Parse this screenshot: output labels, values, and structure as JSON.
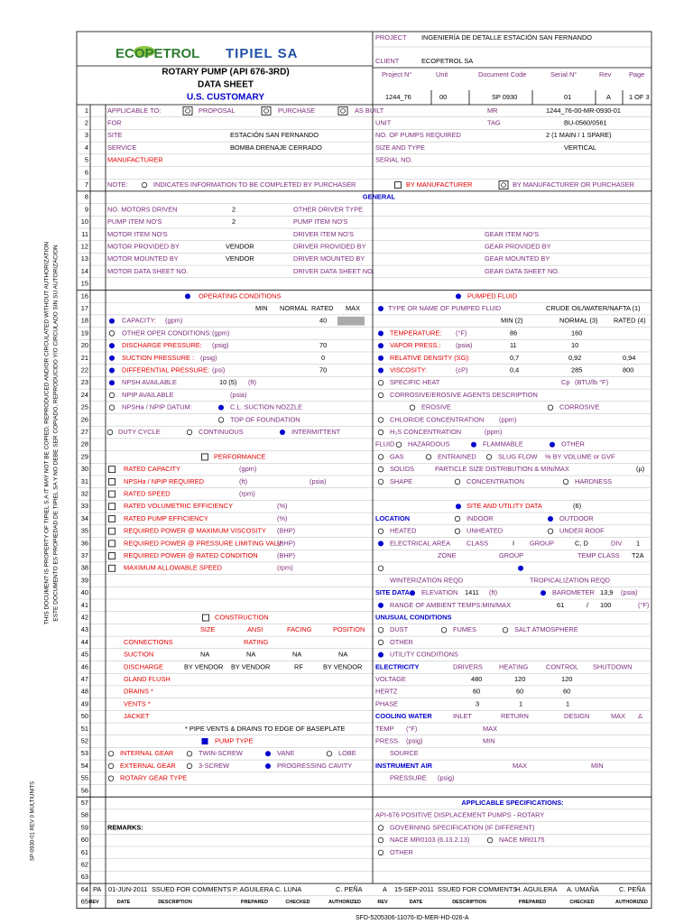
{
  "header": {
    "logo": "ECOPETROL",
    "company": "TIPIEL SA",
    "title": "ROTARY PUMP (API 676-3RD)",
    "subtitle": "DATA SHEET",
    "units": "U.S. CUSTOMARY",
    "project_label": "PROJECT",
    "project": "INGENIERÍA DE DETALLE ESTACIÓN SAN FERNANDO",
    "client_label": "CLIENT",
    "client": "ECOPETROL SA",
    "doc_headers": [
      "Project N°",
      "Unit",
      "Document Code",
      "Serial N°",
      "Rev",
      "Page"
    ],
    "doc_values": [
      "1244_76",
      "00",
      "SP 0930",
      "01",
      "A",
      "1 OF 3"
    ]
  },
  "row_numbers": [
    1,
    2,
    3,
    4,
    5,
    6,
    7,
    8,
    9,
    10,
    11,
    12,
    13,
    14,
    15,
    16,
    17,
    18,
    19,
    20,
    21,
    22,
    23,
    24,
    25,
    26,
    27,
    28,
    29,
    30,
    31,
    32,
    33,
    34,
    35,
    36,
    37,
    38,
    39,
    40,
    41,
    42,
    43,
    44,
    45,
    46,
    47,
    48,
    49,
    50,
    51,
    52,
    53,
    54,
    55,
    56,
    57,
    58,
    59,
    60,
    61,
    62,
    63,
    64,
    65
  ],
  "rows": [
    [
      "APPLICABLE TO:",
      "PROPOSAL",
      "PURCHASE",
      "AS BUILT",
      "MR",
      "1244_76-00-MR-0930-01"
    ],
    [
      "FOR",
      "UNIT",
      "TAG",
      "BU-0560/0561"
    ],
    [
      "SITE",
      "ESTACIÓN SAN FERNANDO",
      "NO. OF PUMPS REQUIRED",
      "2 (1 MAIN / 1 SPARE)"
    ],
    [
      "SERVICE",
      "BOMBA DRENAJE CERRADO",
      "SIZE AND TYPE",
      "VERTICAL"
    ],
    [
      "MANUFACTURER",
      "SERIAL NO."
    ],
    [],
    [
      "NOTE:",
      "INDICATES INFORMATION TO BE COMPLETED BY PURCHASER",
      "BY MANUFACTURER",
      "BY MANUFACTURER OR PURCHASER"
    ],
    [
      "GENERAL"
    ],
    [
      "NO. MOTORS DRIVEN",
      "2",
      "OTHER DRIVER TYPE"
    ],
    [
      "PUMP ITEM NO'S",
      "2",
      "PUMP ITEM NO'S"
    ],
    [
      "MOTOR ITEM NO'S",
      "DRIVER ITEM NO'S",
      "GEAR ITEM NO'S"
    ],
    [
      "MOTOR PROVIDED BY",
      "VENDOR",
      "DRIVER PROVIDED BY",
      "GEAR PROVIDED BY"
    ],
    [
      "MOTOR MOUNTED BY",
      "VENDOR",
      "DRIVER MOUNTED BY",
      "GEAR MOUNTED BY"
    ],
    [
      "MOTOR DATA SHEET NO.",
      "DRIVER DATA SHEET NO.",
      "GEAR DATA SHEET NO."
    ],
    [],
    [
      "OPERATING CONDITIONS",
      "PUMPED FLUID"
    ],
    [
      "MIN",
      "NORMAL",
      "RATED",
      "MAX",
      "TYPE OR NAME OF PUMPED FLUID",
      "CRUDE OIL/WATER/NAFTA (1)"
    ],
    [
      "CAPACITY:",
      "(gpm)",
      "40",
      "MIN (2)",
      "NORMAL (3)",
      "RATED (4)"
    ],
    [
      "OTHER OPER CONDITIONS:",
      "(gpm)",
      "TEMPERATURE:",
      "(°F)",
      "86",
      "160"
    ],
    [
      "DISCHARGE PRESSURE:",
      "(psig)",
      "70",
      "VAPOR PRESS.:",
      "(psia)",
      "11",
      "10"
    ],
    [
      "SUCTION PRESSURE :",
      "(psig)",
      "0",
      "RELATIVE DENSITY (SG):",
      "0,7",
      "0,92",
      "0,94"
    ],
    [
      "DIFFERENTIAL PRESSURE:",
      "(psi)",
      "70",
      "VISCOSITY:",
      "(cP)",
      "0,4",
      "285",
      "800"
    ],
    [
      "NPSH AVAILABLE",
      "10 (5)",
      "(ft)",
      "SPECIFIC HEAT",
      "Cp",
      "(BTU/lb °F)"
    ],
    [
      "NPIP AVAILABLE",
      "(psia)",
      "CORROSIVE/EROSIVE AGENTS DESCRIPTION"
    ],
    [
      "NPSHa / NPIP DATUM:",
      "C.L. SUCTION NOZZLE",
      "EROSIVE",
      "CORROSIVE"
    ],
    [
      "TOP OF FOUNDATION",
      "CHLORIDE CONCENTRATION",
      "(ppm)"
    ],
    [
      "DUTY CYCLE",
      "CONTINUOUS",
      "INTERMITTENT",
      "H₂S CONCENTRATION",
      "(ppm)"
    ],
    [
      "FLUID",
      "HAZARDOUS",
      "FLAMMABLE",
      "OTHER"
    ],
    [
      "PERFORMANCE",
      "GAS",
      "ENTRAINED",
      "SLUG FLOW",
      "% BY VOLUME or GVF"
    ],
    [
      "RATED CAPACITY",
      "(gpm)",
      "SOLIDS",
      "PARTICLE SIZE DISTRIBUTION & MIN/MAX",
      "(µ)"
    ],
    [
      "NPSHa / NPIP REQUIRED",
      "(ft)",
      "(psia)",
      "SHAPE",
      "CONCENTRATION",
      "HARDNESS"
    ],
    [
      "RATED SPEED",
      "(rpm)"
    ],
    [
      "RATED VOLUMETRIC EFFICIENCY",
      "(%)",
      "SITE AND UTILITY DATA",
      "(6)"
    ],
    [
      "RATED PUMP EFFICIENCY",
      "(%)",
      "LOCATION",
      "INDOOR",
      "OUTDOOR"
    ],
    [
      "REQUIRED POWER @ MAXIMUM VISCOSITY",
      "(BHP)",
      "HEATED",
      "UNHEATED",
      "UNDER ROOF"
    ],
    [
      "REQUIRED POWER @ PRESSURE LIMITING VALV",
      "(BHP)",
      "ELECTRICAL AREA",
      "CLASS",
      "I",
      "GROUP",
      "C, D",
      "DIV",
      "1"
    ],
    [
      "REQUIRED POWER @ RATED CONDITION",
      "(BHP)",
      "ZONE",
      "GROUP",
      "TEMP CLASS",
      "T2A"
    ],
    [
      "MAXIMUM ALLOWABLE SPEED",
      "(rpm)"
    ],
    [
      "WINTERIZATION REQD",
      "TROPICALIZATION REQD"
    ],
    [
      "SITE DATA",
      "ELEVATION",
      "1411",
      "(ft)",
      "BAROMETER",
      "13,9",
      "(psia)"
    ],
    [
      "RANGE OF AMBIENT TEMPS:MIN/MAX",
      "61",
      "/",
      "100",
      "(°F)"
    ],
    [
      "CONSTRUCTION",
      "UNUSUAL CONDITIONS"
    ],
    [
      "SIZE",
      "ANSI",
      "FACING",
      "POSITION",
      "DUST",
      "FUMES",
      "SALT ATMOSPHERE"
    ],
    [
      "CONNECTIONS",
      "RATING",
      "OTHER"
    ],
    [
      "SUCTION",
      "NA",
      "NA",
      "NA",
      "NA",
      "UTILITY CONDITIONS"
    ],
    [
      "DISCHARGE",
      "BY VENDOR",
      "BY VENDOR",
      "RF",
      "BY VENDOR",
      "ELECTRICITY",
      "DRIVERS",
      "HEATING",
      "CONTROL",
      "SHUTDOWN"
    ],
    [
      "GLAND FLUSH",
      "VOLTAGE",
      "480",
      "120",
      "120"
    ],
    [
      "DRAINS *",
      "HERTZ",
      "60",
      "60",
      "60"
    ],
    [
      "VENTS *",
      "PHASE",
      "3",
      "1",
      "1"
    ],
    [
      "JACKET",
      "COOLING WATER",
      "INLET",
      "RETURN",
      "DESIGN",
      "MAX",
      "Δ"
    ],
    [
      "* PIPE VENTS & DRAINS TO EDGE OF BASEPLATE",
      "TEMP",
      "(°F)",
      "MAX"
    ],
    [
      "PUMP TYPE",
      "PRESS.",
      "(psig)",
      "MIN"
    ],
    [
      "INTERNAL GEAR",
      "TWIN-SCREW",
      "VANE",
      "LOBE",
      "SOURCE"
    ],
    [
      "EXTERNAL GEAR",
      "3-SCREW",
      "PROGRESSING CAVITY",
      "INSTRUMENT AIR",
      "MAX",
      "MIN"
    ],
    [
      "ROTARY GEAR TYPE",
      "PRESSURE",
      "(psig)"
    ],
    [],
    [
      "APPLICABLE SPECIFICATIONS:"
    ],
    [
      "API-676 POSITIVE DISPLACEMENT PUMPS - ROTARY"
    ],
    [
      "REMARKS:",
      "GOVERNING SPECIFICATION (IF DIFFERENT)"
    ],
    [
      "NACE MR0103 (6.13.2.13)",
      "NACE MR0175"
    ],
    [
      "OTHER"
    ],
    [],
    [],
    [
      "PA",
      "01-JUN-2011",
      "SSUED FOR COMMENTS",
      "P. AGUILERA",
      "C. LUNA",
      "C. PEÑA",
      "A",
      "15-SEP-2011",
      "SSUED FOR COMMENTS",
      "H. AGUILERA",
      "A. UMAÑA",
      "C. PEÑA"
    ],
    [
      "REV",
      "DATE",
      "DESCRIPTION",
      "PREPARED",
      "CHECKED",
      "AUTHORIZED",
      "REV",
      "DATE",
      "DESCRIPTION",
      "PREPARED",
      "CHECKED",
      "AUTHORIZED"
    ]
  ],
  "side_note": [
    "THIS DOCUMENT IS PROPERTY OF TIPIEL S.A IT MAY NOT BE COPIED, REPRODUCED AND/OR CIRCULATED WITHOUT AUTHORIZATION",
    "ESTE DOCUMENTO ES PROPIEDAD DE TIPIEL SA Y NO DEBE SER COPIADO, REPRODUCIDO Y/O CIRCULADO SIN SU AUTORIZACION"
  ],
  "left_code": "SP-0930-01 REV 0 MULTIUNITS",
  "footer": "SFD-5205306-11076-ID-MER-HD-026-A"
}
